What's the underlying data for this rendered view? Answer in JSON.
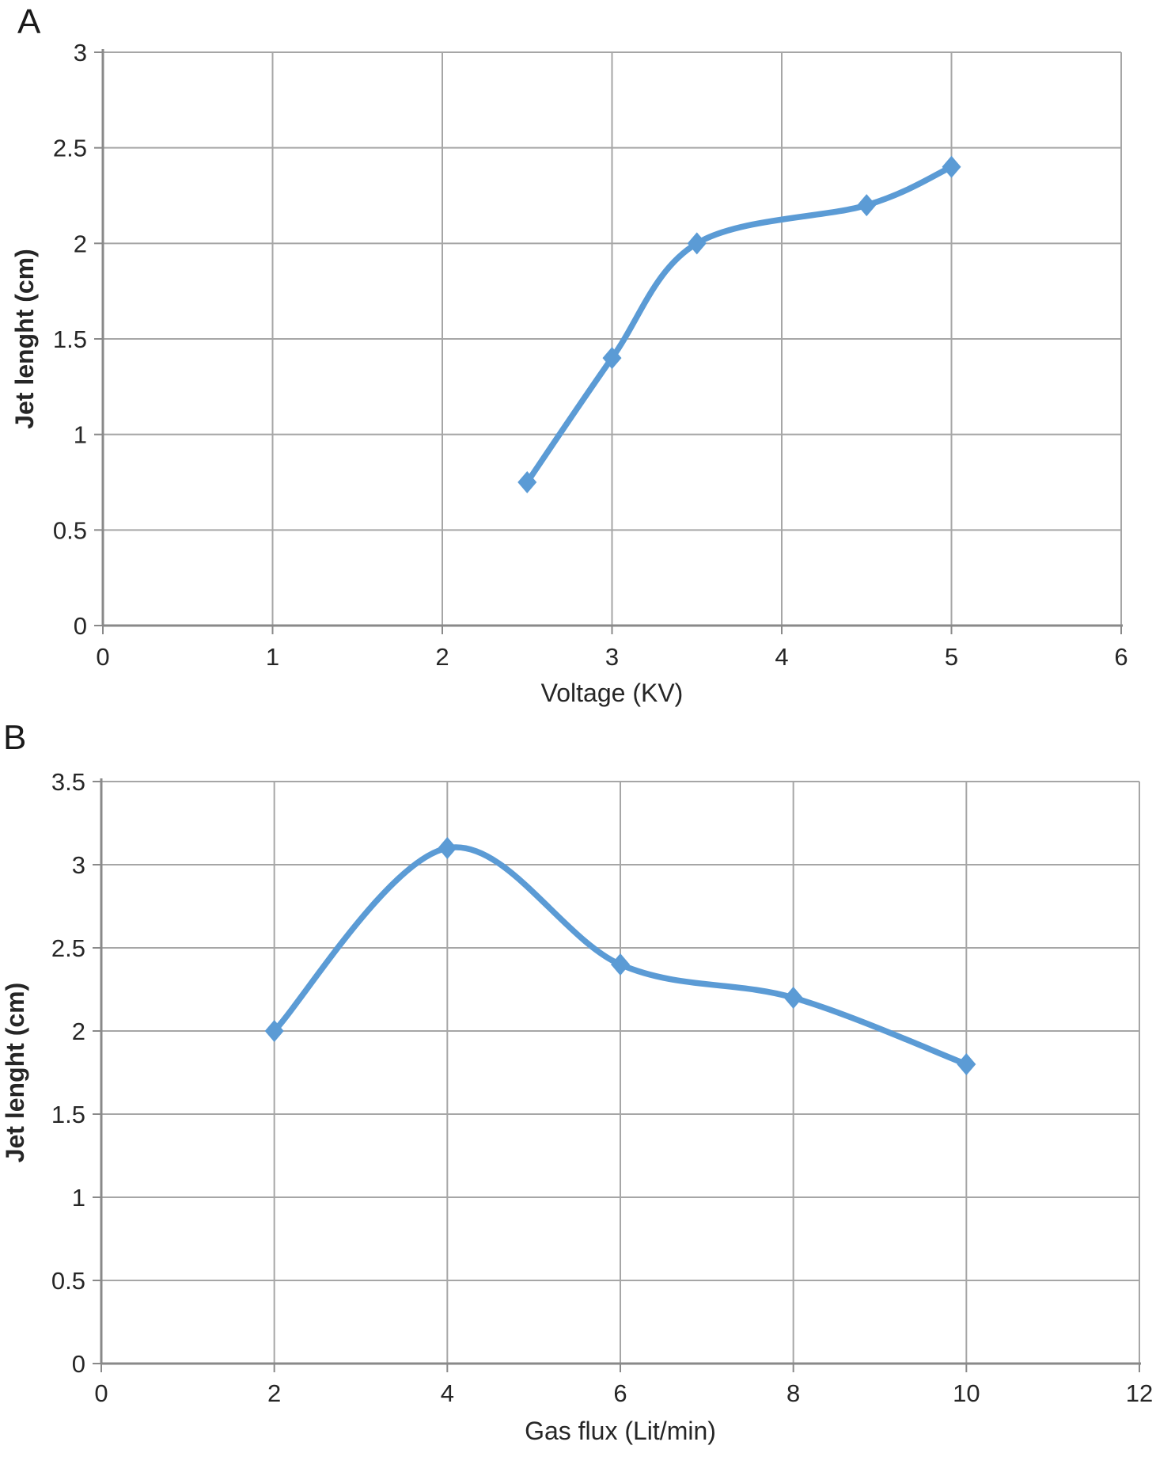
{
  "colors": {
    "line": "#5B9BD5",
    "grid": "#A6A6A6",
    "axis": "#898989",
    "text": "#262626",
    "background": "#ffffff"
  },
  "chart_data": [
    {
      "panel_label": "A",
      "type": "line",
      "x": [
        2.5,
        3,
        3.5,
        4.5,
        5
      ],
      "y": [
        0.75,
        1.4,
        2,
        2.2,
        2.4
      ],
      "xlabel": "Voltage (KV)",
      "ylabel": "Jet lenght (cm)",
      "xlim": [
        0,
        6
      ],
      "ylim": [
        0,
        3
      ],
      "xticks": [
        0,
        1,
        2,
        3,
        4,
        5,
        6
      ],
      "yticks": [
        0,
        0.5,
        1,
        1.5,
        2,
        2.5,
        3
      ],
      "grid": true,
      "legend": "none",
      "marker": "diamond",
      "smooth": true,
      "line_color": "#5B9BD5"
    },
    {
      "panel_label": "B",
      "type": "line",
      "x": [
        2,
        4,
        6,
        8,
        10
      ],
      "y": [
        2,
        3.1,
        2.4,
        2.2,
        1.8
      ],
      "xlabel": "Gas flux (Lit/min)",
      "ylabel": "Jet lenght (cm)",
      "xlim": [
        0,
        12
      ],
      "ylim": [
        0,
        3.5
      ],
      "xticks": [
        0,
        2,
        4,
        6,
        8,
        10,
        12
      ],
      "yticks": [
        0,
        0.5,
        1,
        1.5,
        2,
        2.5,
        3,
        3.5
      ],
      "grid": true,
      "legend": "none",
      "marker": "diamond",
      "smooth": true,
      "line_color": "#5B9BD5"
    }
  ]
}
